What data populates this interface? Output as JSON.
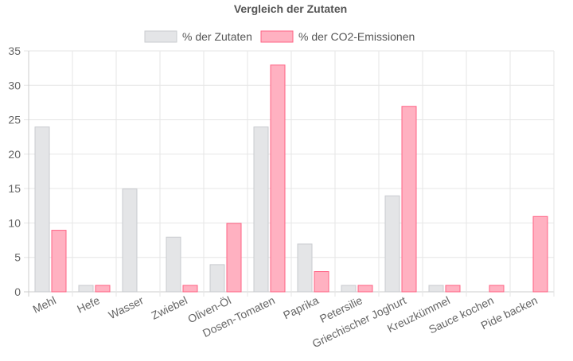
{
  "chart_data": {
    "type": "bar",
    "title": "Vergleich der Zutaten",
    "categories": [
      "Mehl",
      "Hefe",
      "Wasser",
      "Zwiebel",
      "Oliven-Öl",
      "Dosen-Tomaten",
      "Paprika",
      "Petersilie",
      "Griechischer Joghurt",
      "Kreuzkümmel",
      "Sauce kochen",
      "Pide backen"
    ],
    "series": [
      {
        "name": "% der Zutaten",
        "values": [
          24,
          1,
          15,
          8,
          4,
          24,
          7,
          1,
          14,
          1,
          0,
          0
        ],
        "fill": "#e4e5e7",
        "stroke": "#c9cbcf"
      },
      {
        "name": "% der CO2-Emissionen",
        "values": [
          9,
          1,
          0,
          1,
          10,
          33,
          3,
          1,
          27,
          1,
          1,
          11
        ],
        "fill": "#ffb1c1",
        "stroke": "#ff6384"
      }
    ],
    "ylim": [
      0,
      35
    ],
    "yticks": [
      0,
      5,
      10,
      15,
      20,
      25,
      30,
      35
    ],
    "grid": true,
    "legend_position": "top"
  }
}
